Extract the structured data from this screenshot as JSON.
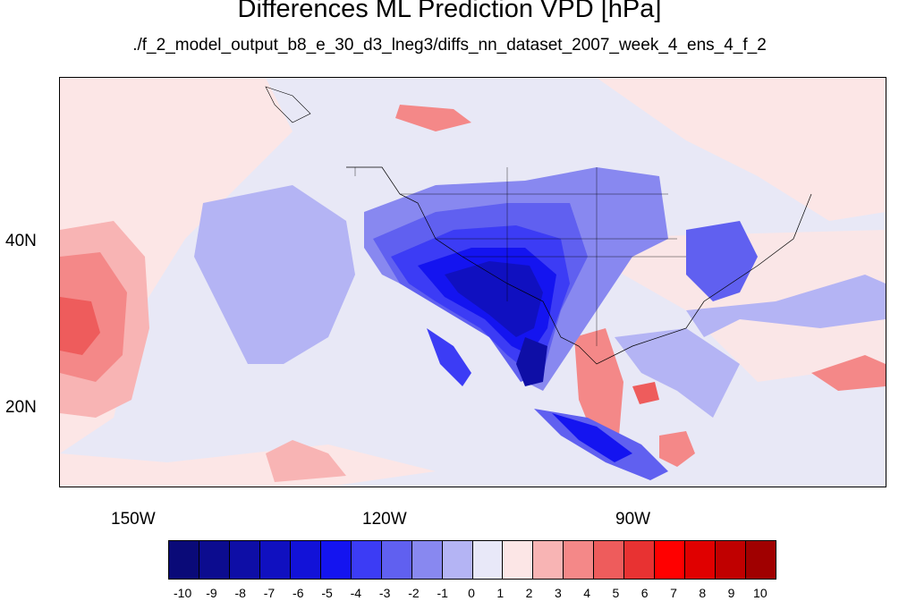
{
  "title": "Differences ML Prediction VPD [hPa]",
  "subtitle": "./f_2_model_output_b8_e_30_d3_lneg3/diffs_nn_dataset_2007_week_4_ens_4_f_2",
  "lat_labels": [
    "40N",
    "20N"
  ],
  "lon_labels": [
    "150W",
    "120W",
    "90W"
  ],
  "colorbar": {
    "labels": [
      "-10",
      "-9",
      "-8",
      "-7",
      "-6",
      "-5",
      "-4",
      "-3",
      "-2",
      "-1",
      "0",
      "1",
      "2",
      "3",
      "4",
      "5",
      "6",
      "7",
      "8",
      "9",
      "10"
    ],
    "colors": [
      "#0a0a78",
      "#0c0c8f",
      "#0e0ea6",
      "#1010c0",
      "#1212d8",
      "#1414f0",
      "#3c3cf5",
      "#6060f0",
      "#8888f0",
      "#b4b4f4",
      "#e8e8f8",
      "#fce6e6",
      "#f8b4b4",
      "#f48888",
      "#ee5c5c",
      "#e83232",
      "#ff0000",
      "#e00000",
      "#c00000",
      "#a00000",
      "#800000"
    ]
  }
}
